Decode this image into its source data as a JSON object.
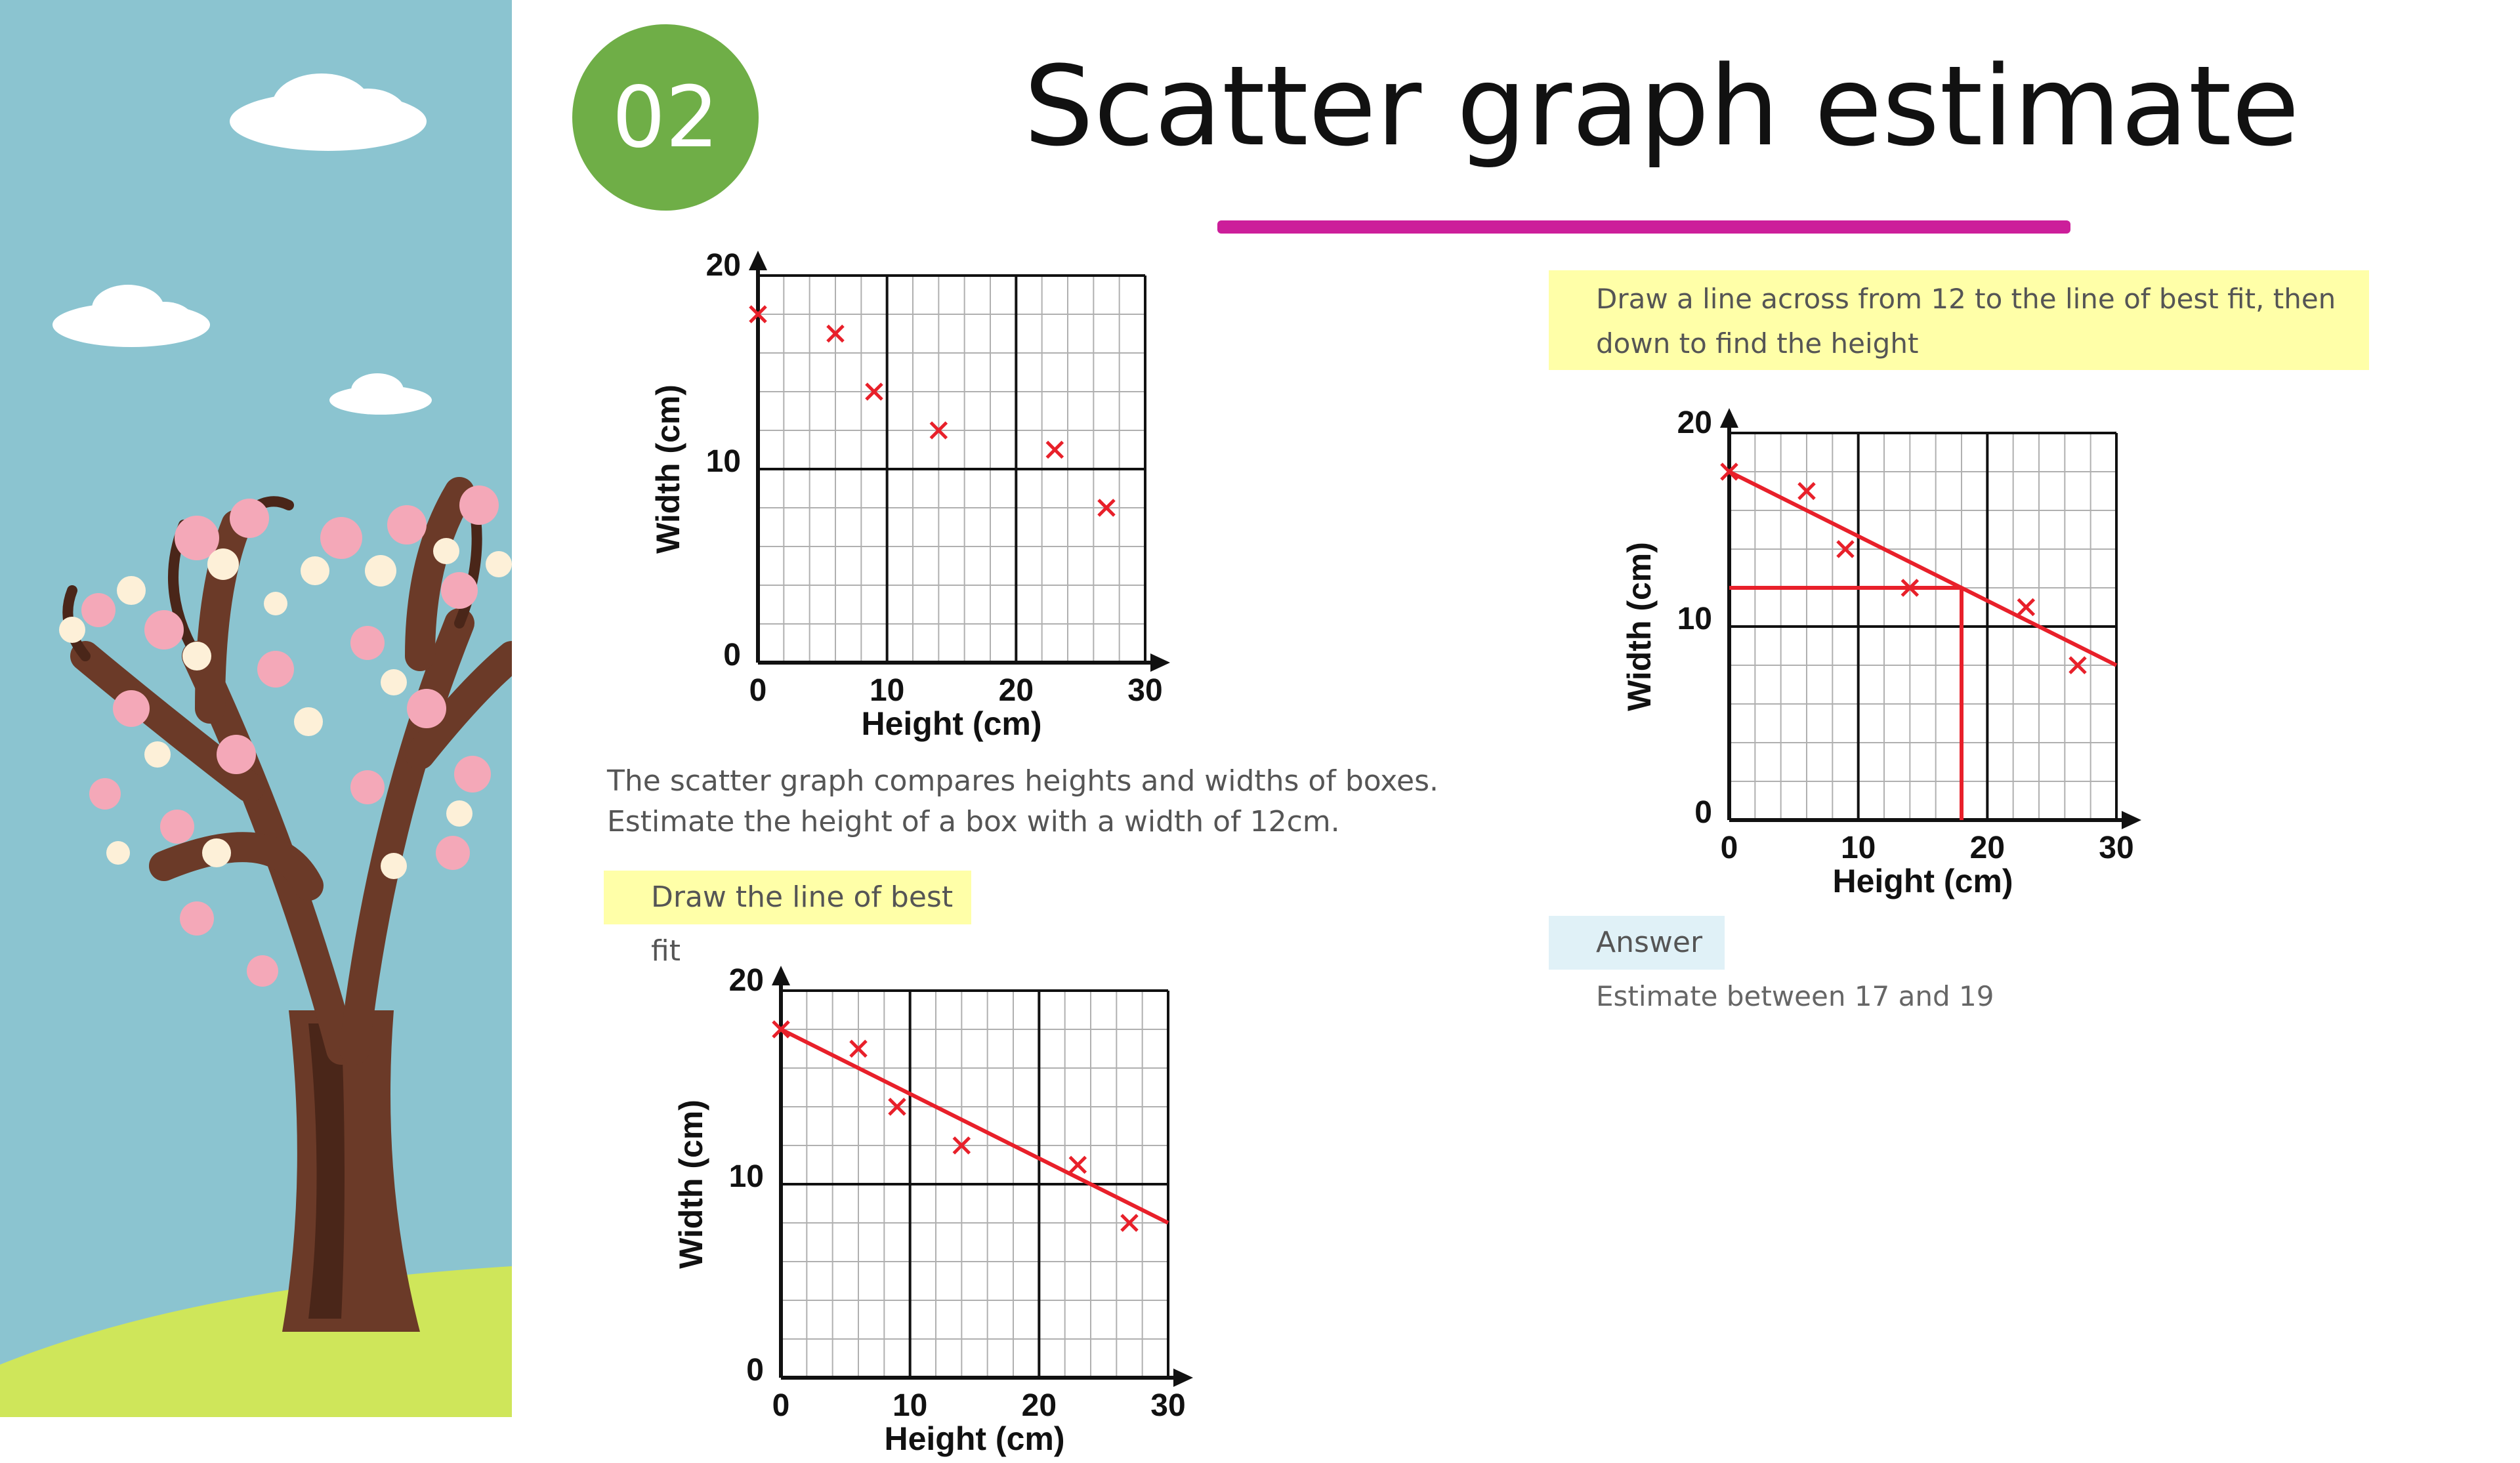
{
  "slide": {
    "number": "02",
    "title": "Scatter graph estimate",
    "badge_color": "#6fae47",
    "underline_color": "#cc1e9a"
  },
  "question": {
    "line1": "The scatter graph compares heights and widths of boxes.",
    "line2": "Estimate the height of a box with a width of 12cm."
  },
  "hints": {
    "best_fit": "Draw the line of best fit",
    "instruction_line1": "Draw a line across from 12 to the line of best fit, then",
    "instruction_line2": "down to find the height",
    "highlight_color": "#ffffa8"
  },
  "answer": {
    "label": "Answer",
    "value": "Estimate between 17 and 19"
  },
  "chart_data": [
    {
      "type": "scatter",
      "xlabel": "Height (cm)",
      "ylabel": "Width (cm)",
      "xlim": [
        0,
        30
      ],
      "ylim": [
        0,
        20
      ],
      "xticks": [
        "0",
        "10",
        "20",
        "30"
      ],
      "yticks": [
        "0",
        "10",
        "20"
      ],
      "grid": true,
      "marker_color": "#e8202a",
      "points": [
        {
          "x": 0,
          "y": 18
        },
        {
          "x": 6,
          "y": 17
        },
        {
          "x": 9,
          "y": 14
        },
        {
          "x": 14,
          "y": 12
        },
        {
          "x": 23,
          "y": 11
        },
        {
          "x": 27,
          "y": 8
        }
      ],
      "best_fit": null,
      "estimate": null
    },
    {
      "type": "scatter",
      "xlabel": "Height (cm)",
      "ylabel": "Width (cm)",
      "xlim": [
        0,
        30
      ],
      "ylim": [
        0,
        20
      ],
      "xticks": [
        "0",
        "10",
        "20",
        "30"
      ],
      "yticks": [
        "0",
        "10",
        "20"
      ],
      "grid": true,
      "marker_color": "#e8202a",
      "points": [
        {
          "x": 0,
          "y": 18
        },
        {
          "x": 6,
          "y": 17
        },
        {
          "x": 9,
          "y": 14
        },
        {
          "x": 14,
          "y": 12
        },
        {
          "x": 23,
          "y": 11
        },
        {
          "x": 27,
          "y": 8
        }
      ],
      "best_fit": {
        "x1": 0,
        "y1": 18,
        "x2": 30,
        "y2": 8
      },
      "estimate": {
        "y": 12,
        "x": 18
      }
    },
    {
      "type": "scatter",
      "xlabel": "Height (cm)",
      "ylabel": "Width (cm)",
      "xlim": [
        0,
        30
      ],
      "ylim": [
        0,
        20
      ],
      "xticks": [
        "0",
        "10",
        "20",
        "30"
      ],
      "yticks": [
        "0",
        "10",
        "20"
      ],
      "grid": true,
      "marker_color": "#e8202a",
      "points": [
        {
          "x": 0,
          "y": 18
        },
        {
          "x": 6,
          "y": 17
        },
        {
          "x": 9,
          "y": 14
        },
        {
          "x": 14,
          "y": 12
        },
        {
          "x": 23,
          "y": 11
        },
        {
          "x": 27,
          "y": 8
        }
      ],
      "best_fit": {
        "x1": 0,
        "y1": 18,
        "x2": 30,
        "y2": 8
      },
      "estimate": null
    }
  ]
}
